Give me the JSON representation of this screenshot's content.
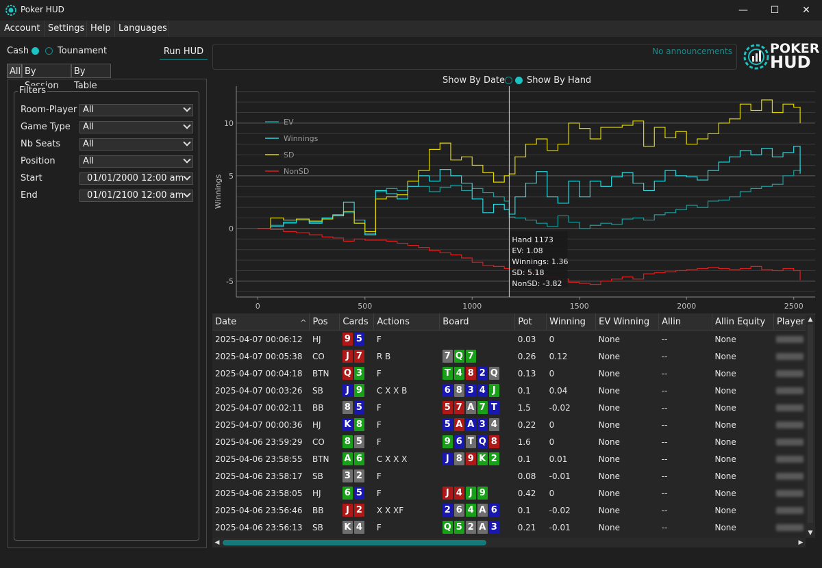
{
  "window": {
    "title": "Poker HUD",
    "minimize_glyph": "—",
    "maximize_glyph": "☐",
    "close_glyph": "✕"
  },
  "menu": [
    "Account",
    "Settings",
    "Help",
    "Languages"
  ],
  "mode": {
    "cash_label": "Cash",
    "tournament_label": "Tounament",
    "selected": "cash"
  },
  "run_hud_label": "Run HUD",
  "announcement": "No announcements",
  "logo": {
    "line1": "POKER",
    "line2": "HUD"
  },
  "tabs": [
    "All",
    "By Session",
    "By Table"
  ],
  "filters": {
    "title": "Filters",
    "fields": [
      {
        "label": "Room-Player",
        "value": "All"
      },
      {
        "label": "Game Type",
        "value": "All"
      },
      {
        "label": "Nb Seats",
        "value": "All"
      },
      {
        "label": "Position",
        "value": "All"
      },
      {
        "label": "Start",
        "value": "01/01/2000 12:00 am"
      },
      {
        "label": "End",
        "value": "01/01/2100 12:00 am"
      }
    ]
  },
  "chart_toggle": {
    "by_date_label": "Show By Date",
    "by_hand_label": "Show By Hand",
    "selected": "hand"
  },
  "chart_data": {
    "type": "line",
    "ylabel": "Winnings",
    "xlim": [
      -100,
      2600
    ],
    "ylim": [
      -6.5,
      13.5
    ],
    "xticks": [
      0,
      500,
      1000,
      1500,
      2000,
      2500
    ],
    "yticks": [
      -5,
      0,
      5,
      10
    ],
    "legend_position": "top-left",
    "series": [
      {
        "name": "EV",
        "color": "#1a9e9e",
        "x": [
          0,
          60,
          120,
          180,
          240,
          300,
          350,
          400,
          450,
          500,
          550,
          600,
          650,
          700,
          750,
          800,
          850,
          900,
          950,
          1000,
          1050,
          1100,
          1150,
          1173,
          1200,
          1250,
          1300,
          1350,
          1400,
          1450,
          1500,
          1550,
          1600,
          1650,
          1700,
          1750,
          1800,
          1850,
          1900,
          1950,
          2000,
          2050,
          2100,
          2150,
          2200,
          2250,
          2300,
          2350,
          2400,
          2450,
          2500,
          2530
        ],
        "y": [
          0,
          0.3,
          0.5,
          0.8,
          0.6,
          1.0,
          1.2,
          1.5,
          0.5,
          -0.5,
          3.5,
          3.8,
          3.6,
          4.5,
          4.0,
          3.5,
          3.9,
          4.1,
          3.6,
          3.8,
          3.4,
          3.0,
          2.6,
          1.08,
          1.0,
          0.8,
          0.5,
          0.2,
          1.2,
          0.6,
          0,
          0.3,
          0.5,
          0.4,
          0.9,
          1.0,
          0.8,
          1.3,
          1.5,
          1.8,
          2.2,
          2.0,
          2.6,
          2.7,
          3.0,
          3.5,
          3.8,
          4.0,
          4.2,
          5.0,
          5.5,
          5.8
        ]
      },
      {
        "name": "Winnings",
        "color": "#2ad8e0",
        "x": [
          0,
          60,
          120,
          180,
          240,
          300,
          350,
          400,
          450,
          500,
          550,
          600,
          650,
          700,
          750,
          800,
          850,
          900,
          950,
          1000,
          1050,
          1100,
          1150,
          1173,
          1200,
          1250,
          1300,
          1350,
          1400,
          1450,
          1500,
          1550,
          1600,
          1650,
          1700,
          1750,
          1800,
          1850,
          1900,
          1950,
          2000,
          2050,
          2100,
          2150,
          2200,
          2250,
          2300,
          2350,
          2400,
          2450,
          2500,
          2530
        ],
        "y": [
          0,
          0.2,
          0.6,
          0.9,
          0.5,
          1.0,
          1.3,
          2.5,
          0.8,
          -0.6,
          3.6,
          3.3,
          2.8,
          4.0,
          5.0,
          4.5,
          5.6,
          5.0,
          4.3,
          2.8,
          1.5,
          2.3,
          1.8,
          1.36,
          3.0,
          4.3,
          5.4,
          3.0,
          2.4,
          4.5,
          3.0,
          4.5,
          4.0,
          4.9,
          5.3,
          4.3,
          3.6,
          4.5,
          5.5,
          5.0,
          4.9,
          4.6,
          5.5,
          6.3,
          6.8,
          7.4,
          7.0,
          7.6,
          6.8,
          7.2,
          7.8,
          5.2
        ]
      },
      {
        "name": "SD",
        "color": "#e0d600",
        "x": [
          0,
          60,
          120,
          180,
          240,
          300,
          350,
          400,
          450,
          500,
          550,
          600,
          650,
          700,
          750,
          800,
          850,
          900,
          950,
          1000,
          1050,
          1100,
          1150,
          1173,
          1200,
          1250,
          1300,
          1350,
          1400,
          1450,
          1500,
          1550,
          1600,
          1650,
          1700,
          1750,
          1800,
          1850,
          1900,
          1950,
          2000,
          2050,
          2100,
          2150,
          2200,
          2250,
          2300,
          2350,
          2400,
          2450,
          2500,
          2530
        ],
        "y": [
          0,
          1.0,
          0.8,
          0.9,
          0.7,
          0.9,
          1.2,
          1.6,
          0.5,
          -0.3,
          2.8,
          3.0,
          3.2,
          4.5,
          5.5,
          7.5,
          8.1,
          6.5,
          6.8,
          6.0,
          5.3,
          4.4,
          5.0,
          5.18,
          6.8,
          8.0,
          8.5,
          7.4,
          8.0,
          10.0,
          9.5,
          8.5,
          9.6,
          9.6,
          9.8,
          10.2,
          7.8,
          9.6,
          8.6,
          9.2,
          8.0,
          8.5,
          9.0,
          10.0,
          10.4,
          11.8,
          11.2,
          12.2,
          11.0,
          11.8,
          11.5,
          10.0
        ]
      },
      {
        "name": "NonSD",
        "color": "#e01c1c",
        "x": [
          0,
          60,
          120,
          180,
          240,
          300,
          350,
          400,
          450,
          500,
          550,
          600,
          650,
          700,
          750,
          800,
          850,
          900,
          950,
          1000,
          1050,
          1100,
          1150,
          1173,
          1200,
          1250,
          1300,
          1350,
          1400,
          1450,
          1500,
          1550,
          1600,
          1650,
          1700,
          1750,
          1800,
          1850,
          1900,
          1950,
          2000,
          2050,
          2100,
          2150,
          2200,
          2250,
          2300,
          2350,
          2400,
          2450,
          2500,
          2530
        ],
        "y": [
          0,
          -0.1,
          -0.3,
          -0.4,
          -0.6,
          -0.8,
          -0.9,
          -1.2,
          -1.0,
          -1.1,
          -1.1,
          -1.2,
          -1.4,
          -1.6,
          -1.8,
          -2.1,
          -2.3,
          -2.5,
          -2.8,
          -3.2,
          -3.5,
          -3.6,
          -3.8,
          -3.82,
          -3.9,
          -4.2,
          -4.5,
          -4.6,
          -4.8,
          -5.1,
          -5.2,
          -5.3,
          -5.0,
          -4.8,
          -4.6,
          -4.8,
          -4.3,
          -4.2,
          -4.1,
          -4.0,
          -3.9,
          -3.8,
          -3.7,
          -3.8,
          -3.9,
          -3.8,
          -3.6,
          -3.9,
          -4.0,
          -3.8,
          -4.0,
          -4.9
        ]
      }
    ],
    "cursor": {
      "x": 1173
    },
    "tooltip": {
      "hand": "Hand 1173",
      "ev": "EV: 1.08",
      "winnings": "Winnings: 1.36",
      "sd": "SD: 5.18",
      "nonsd": "NonSD: -3.82"
    }
  },
  "table": {
    "columns": [
      "Date",
      "Pos",
      "Cards",
      "Actions",
      "Board",
      "Pot",
      "Winning",
      "EV Winning",
      "Allin",
      "Allin Equity",
      "Player"
    ],
    "sort_indicator": "^",
    "card_colors": {
      "red": "#b01818",
      "blue": "#1818b0",
      "green": "#18a018",
      "gray": "#6e6e6e"
    },
    "rows": [
      {
        "date": "2025-04-07 00:06:12",
        "pos": "HJ",
        "cards": [
          [
            "9",
            "red"
          ],
          [
            "5",
            "blue"
          ]
        ],
        "actions": "F",
        "board": [],
        "pot": "0.03",
        "winning": "0",
        "ev": "None",
        "allin": "--",
        "equity": "None"
      },
      {
        "date": "2025-04-07 00:05:38",
        "pos": "CO",
        "cards": [
          [
            "J",
            "red"
          ],
          [
            "7",
            "red"
          ]
        ],
        "actions": "R B",
        "board": [
          [
            "7",
            "gray"
          ],
          [
            "Q",
            "green"
          ],
          [
            "7",
            "green"
          ]
        ],
        "pot": "0.26",
        "winning": "0.12",
        "ev": "None",
        "allin": "--",
        "equity": "None"
      },
      {
        "date": "2025-04-07 00:04:18",
        "pos": "BTN",
        "cards": [
          [
            "Q",
            "red"
          ],
          [
            "3",
            "green"
          ]
        ],
        "actions": "F",
        "board": [
          [
            "T",
            "green"
          ],
          [
            "4",
            "green"
          ],
          [
            "8",
            "red"
          ],
          [
            "2",
            "blue"
          ],
          [
            "Q",
            "gray"
          ]
        ],
        "pot": "0.13",
        "winning": "0",
        "ev": "None",
        "allin": "--",
        "equity": "None"
      },
      {
        "date": "2025-04-07 00:03:26",
        "pos": "SB",
        "cards": [
          [
            "J",
            "blue"
          ],
          [
            "9",
            "green"
          ]
        ],
        "actions": "C X X B",
        "board": [
          [
            "6",
            "blue"
          ],
          [
            "8",
            "gray"
          ],
          [
            "3",
            "blue"
          ],
          [
            "4",
            "blue"
          ],
          [
            "J",
            "green"
          ]
        ],
        "pot": "0.1",
        "winning": "0.04",
        "ev": "None",
        "allin": "--",
        "equity": "None"
      },
      {
        "date": "2025-04-07 00:02:11",
        "pos": "BB",
        "cards": [
          [
            "8",
            "gray"
          ],
          [
            "5",
            "blue"
          ]
        ],
        "actions": "F",
        "board": [
          [
            "5",
            "red"
          ],
          [
            "7",
            "red"
          ],
          [
            "A",
            "gray"
          ],
          [
            "7",
            "green"
          ],
          [
            "T",
            "blue"
          ]
        ],
        "pot": "1.5",
        "winning": "-0.02",
        "ev": "None",
        "allin": "--",
        "equity": "None"
      },
      {
        "date": "2025-04-07 00:00:36",
        "pos": "HJ",
        "cards": [
          [
            "K",
            "blue"
          ],
          [
            "8",
            "green"
          ]
        ],
        "actions": "F",
        "board": [
          [
            "5",
            "blue"
          ],
          [
            "A",
            "red"
          ],
          [
            "A",
            "blue"
          ],
          [
            "3",
            "blue"
          ],
          [
            "4",
            "gray"
          ]
        ],
        "pot": "0.22",
        "winning": "0",
        "ev": "None",
        "allin": "--",
        "equity": "None"
      },
      {
        "date": "2025-04-06 23:59:29",
        "pos": "CO",
        "cards": [
          [
            "8",
            "green"
          ],
          [
            "5",
            "gray"
          ]
        ],
        "actions": "F",
        "board": [
          [
            "9",
            "green"
          ],
          [
            "6",
            "blue"
          ],
          [
            "T",
            "gray"
          ],
          [
            "Q",
            "blue"
          ],
          [
            "8",
            "red"
          ]
        ],
        "pot": "1.6",
        "winning": "0",
        "ev": "None",
        "allin": "--",
        "equity": "None"
      },
      {
        "date": "2025-04-06 23:58:55",
        "pos": "BTN",
        "cards": [
          [
            "A",
            "green"
          ],
          [
            "6",
            "green"
          ]
        ],
        "actions": "C X X X",
        "board": [
          [
            "J",
            "blue"
          ],
          [
            "8",
            "gray"
          ],
          [
            "9",
            "red"
          ],
          [
            "K",
            "green"
          ],
          [
            "2",
            "green"
          ]
        ],
        "pot": "0.1",
        "winning": "0.01",
        "ev": "None",
        "allin": "--",
        "equity": "None"
      },
      {
        "date": "2025-04-06 23:58:17",
        "pos": "SB",
        "cards": [
          [
            "3",
            "gray"
          ],
          [
            "2",
            "gray"
          ]
        ],
        "actions": "F",
        "board": [],
        "pot": "0.08",
        "winning": "-0.01",
        "ev": "None",
        "allin": "--",
        "equity": "None"
      },
      {
        "date": "2025-04-06 23:58:05",
        "pos": "HJ",
        "cards": [
          [
            "6",
            "green"
          ],
          [
            "5",
            "blue"
          ]
        ],
        "actions": "F",
        "board": [
          [
            "J",
            "red"
          ],
          [
            "4",
            "red"
          ],
          [
            "J",
            "green"
          ],
          [
            "9",
            "green"
          ]
        ],
        "pot": "0.42",
        "winning": "0",
        "ev": "None",
        "allin": "--",
        "equity": "None"
      },
      {
        "date": "2025-04-06 23:56:46",
        "pos": "BB",
        "cards": [
          [
            "J",
            "red"
          ],
          [
            "2",
            "red"
          ]
        ],
        "actions": "X X XF",
        "board": [
          [
            "2",
            "blue"
          ],
          [
            "6",
            "gray"
          ],
          [
            "4",
            "green"
          ],
          [
            "A",
            "gray"
          ],
          [
            "6",
            "blue"
          ]
        ],
        "pot": "0.1",
        "winning": "-0.02",
        "ev": "None",
        "allin": "--",
        "equity": "None"
      },
      {
        "date": "2025-04-06 23:56:13",
        "pos": "SB",
        "cards": [
          [
            "K",
            "gray"
          ],
          [
            "4",
            "gray"
          ]
        ],
        "actions": "F",
        "board": [
          [
            "Q",
            "green"
          ],
          [
            "5",
            "green"
          ],
          [
            "2",
            "gray"
          ],
          [
            "A",
            "gray"
          ],
          [
            "3",
            "blue"
          ]
        ],
        "pot": "0.21",
        "winning": "-0.01",
        "ev": "None",
        "allin": "--",
        "equity": "None"
      }
    ]
  }
}
